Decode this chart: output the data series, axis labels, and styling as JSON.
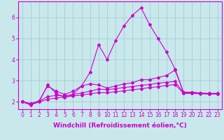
{
  "background_color": "#c8e8ec",
  "grid_color": "#a0c8cc",
  "line_color": "#cc00cc",
  "marker_style": "D",
  "marker_size": 2,
  "line_width": 0.8,
  "xlabel": "Windchill (Refroidissement éolien,°C)",
  "xlabel_fontsize": 6.5,
  "tick_fontsize": 5.5,
  "xlim": [
    -0.5,
    23.5
  ],
  "ylim": [
    1.65,
    6.75
  ],
  "yticks": [
    2,
    3,
    4,
    5,
    6
  ],
  "xticks": [
    0,
    1,
    2,
    3,
    4,
    5,
    6,
    7,
    8,
    9,
    10,
    11,
    12,
    13,
    14,
    15,
    16,
    17,
    18,
    19,
    20,
    21,
    22,
    23
  ],
  "series": [
    {
      "x": [
        0,
        1,
        2,
        3,
        4,
        5,
        6,
        7,
        8,
        9,
        10,
        11,
        12,
        13,
        14,
        15,
        16,
        17,
        18,
        19,
        20,
        21,
        22,
        23
      ],
      "y": [
        2.0,
        1.85,
        2.0,
        2.8,
        2.4,
        2.2,
        2.35,
        2.75,
        3.4,
        4.7,
        4.0,
        4.9,
        5.6,
        6.1,
        6.45,
        5.65,
        5.0,
        4.35,
        3.55,
        2.45,
        2.45,
        2.4,
        2.38,
        2.38
      ]
    },
    {
      "x": [
        0,
        1,
        2,
        3,
        4,
        5,
        6,
        7,
        8,
        9,
        10,
        11,
        12,
        13,
        14,
        15,
        16,
        17,
        18,
        19,
        20,
        21,
        22,
        23
      ],
      "y": [
        2.0,
        1.9,
        2.05,
        2.75,
        2.5,
        2.35,
        2.5,
        2.75,
        2.85,
        2.8,
        2.65,
        2.75,
        2.85,
        2.9,
        3.05,
        3.05,
        3.15,
        3.25,
        3.5,
        2.45,
        2.45,
        2.42,
        2.4,
        2.4
      ]
    },
    {
      "x": [
        0,
        1,
        2,
        3,
        4,
        5,
        6,
        7,
        8,
        9,
        10,
        11,
        12,
        13,
        14,
        15,
        16,
        17,
        18,
        19,
        20,
        21,
        22,
        23
      ],
      "y": [
        2.0,
        1.92,
        2.02,
        2.25,
        2.3,
        2.28,
        2.35,
        2.42,
        2.5,
        2.6,
        2.58,
        2.62,
        2.68,
        2.72,
        2.78,
        2.82,
        2.88,
        2.92,
        2.97,
        2.42,
        2.42,
        2.4,
        2.38,
        2.38
      ]
    },
    {
      "x": [
        0,
        1,
        2,
        3,
        4,
        5,
        6,
        7,
        8,
        9,
        10,
        11,
        12,
        13,
        14,
        15,
        16,
        17,
        18,
        19,
        20,
        21,
        22,
        23
      ],
      "y": [
        2.0,
        1.9,
        2.0,
        2.12,
        2.18,
        2.22,
        2.28,
        2.32,
        2.38,
        2.43,
        2.43,
        2.48,
        2.52,
        2.57,
        2.62,
        2.67,
        2.72,
        2.77,
        2.82,
        2.4,
        2.4,
        2.38,
        2.37,
        2.37
      ]
    }
  ]
}
